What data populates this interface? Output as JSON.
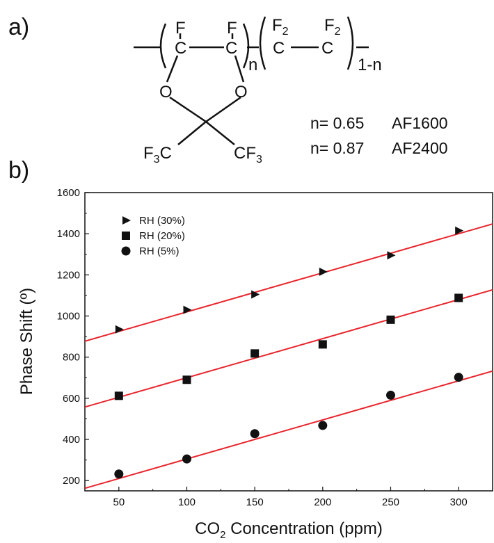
{
  "panel_a": {
    "label": "a)",
    "structure": {
      "unit1_atoms": [
        "F",
        "F",
        "C",
        "C",
        "O",
        "O"
      ],
      "unit1_subscript": "n",
      "unit2_atoms": [
        "F",
        "2",
        "F",
        "2",
        "C",
        "C"
      ],
      "unit2_subscript": "1-n",
      "substituent_left": {
        "main": "F",
        "sub": "3",
        "tail": "C"
      },
      "substituent_right": {
        "main": "CF",
        "sub": "3"
      }
    },
    "variants": [
      {
        "n_text": "n= 0.65",
        "name": "AF1600"
      },
      {
        "n_text": "n= 0.87",
        "name": "AF2400"
      }
    ]
  },
  "panel_b": {
    "label": "b)"
  },
  "colors": {
    "fit_line": "#e8262d",
    "marker": "#111111",
    "axis": "#111111"
  },
  "chart_data": {
    "type": "scatter",
    "title": "",
    "xlabel": {
      "main": "CO",
      "sub": "2",
      "rest": " Concentration (ppm)"
    },
    "ylabel": "Phase Shift (º)",
    "xlim": [
      25,
      325
    ],
    "ylim": [
      150,
      1600
    ],
    "xticks": [
      50,
      100,
      150,
      200,
      250,
      300
    ],
    "yticks": [
      200,
      400,
      600,
      800,
      1000,
      1200,
      1400,
      1600
    ],
    "grid": false,
    "legend_position": "top-left",
    "x": [
      50,
      100,
      150,
      200,
      250,
      300
    ],
    "series": [
      {
        "name": "RH (30%)",
        "marker": "triangle-right",
        "values": [
          935,
          1030,
          1105,
          1215,
          1295,
          1415
        ],
        "fit": {
          "intercept": 830,
          "slope": 1.9
        }
      },
      {
        "name": "RH (20%)",
        "marker": "square",
        "values": [
          612,
          690,
          818,
          862,
          982,
          1088
        ],
        "fit": {
          "intercept": 510,
          "slope": 1.9
        }
      },
      {
        "name": "RH (5%)",
        "marker": "circle",
        "values": [
          232,
          305,
          428,
          468,
          615,
          702
        ],
        "fit": {
          "intercept": 115,
          "slope": 1.9
        }
      }
    ]
  }
}
